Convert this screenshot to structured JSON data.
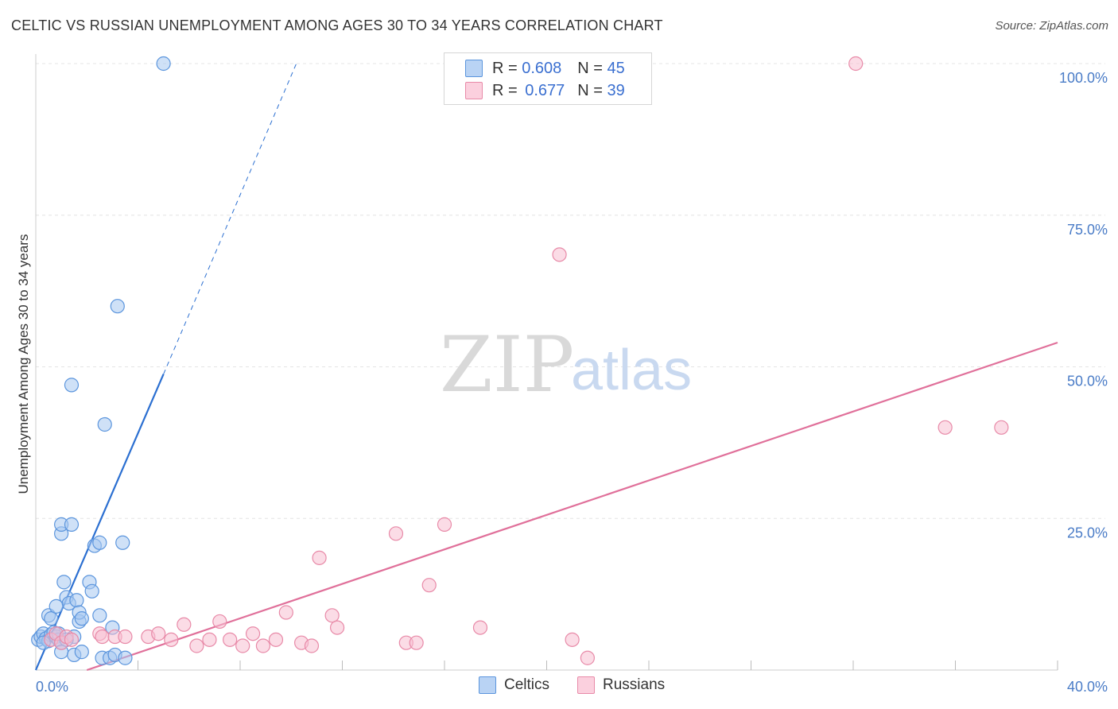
{
  "title": "CELTIC VS RUSSIAN UNEMPLOYMENT AMONG AGES 30 TO 34 YEARS CORRELATION CHART",
  "source": "Source: ZipAtlas.com",
  "watermark": {
    "zip": "ZIP",
    "atlas": "atlas"
  },
  "legend_top": [
    {
      "r_label": "R =",
      "r_value": "0.608",
      "n_label": "N =",
      "n_value": "45"
    },
    {
      "r_label": "R =",
      "r_value": "0.677",
      "n_label": "N =",
      "n_value": "39"
    }
  ],
  "legend_bottom": [
    "Celtics",
    "Russians"
  ],
  "colors": {
    "celtics_fill": "#a8c8f0",
    "celtics_stroke": "#5b95dd",
    "celtics_line": "#2b6fd1",
    "russians_fill": "#f8c0d2",
    "russians_stroke": "#e88aa8",
    "russians_line": "#e0709a",
    "tick": "#4a7cc7"
  },
  "chart_data": {
    "type": "scatter",
    "title": "CELTIC VS RUSSIAN UNEMPLOYMENT AMONG AGES 30 TO 34 YEARS CORRELATION CHART",
    "xlabel": "",
    "ylabel": "Unemployment Among Ages 30 to 34 years",
    "xlim": [
      0,
      40
    ],
    "ylim": [
      0,
      100
    ],
    "x_tick_labels": [
      {
        "v": 0,
        "label": "0.0%"
      },
      {
        "v": 40,
        "label": "40.0%"
      }
    ],
    "y_tick_labels": [
      {
        "v": 25,
        "label": "25.0%"
      },
      {
        "v": 50,
        "label": "50.0%"
      },
      {
        "v": 75,
        "label": "75.0%"
      },
      {
        "v": 100,
        "label": "100.0%"
      }
    ],
    "series": [
      {
        "name": "Celtics",
        "r": 0.608,
        "n": 45,
        "points": [
          [
            0.1,
            5.0
          ],
          [
            0.2,
            5.5
          ],
          [
            0.3,
            6.0
          ],
          [
            0.4,
            5.2
          ],
          [
            0.5,
            4.8
          ],
          [
            0.6,
            5.8
          ],
          [
            0.7,
            6.2
          ],
          [
            0.8,
            5.5
          ],
          [
            0.9,
            5.0
          ],
          [
            1.0,
            4.5
          ],
          [
            0.5,
            9.0
          ],
          [
            0.6,
            8.5
          ],
          [
            0.8,
            10.5
          ],
          [
            1.0,
            22.5
          ],
          [
            1.0,
            24.0
          ],
          [
            1.1,
            14.5
          ],
          [
            1.2,
            12.0
          ],
          [
            1.3,
            11.0
          ],
          [
            1.4,
            24.0
          ],
          [
            1.4,
            47.0
          ],
          [
            1.5,
            5.5
          ],
          [
            1.6,
            11.5
          ],
          [
            1.7,
            8.0
          ],
          [
            1.7,
            9.5
          ],
          [
            1.8,
            8.5
          ],
          [
            1.0,
            3.0
          ],
          [
            1.5,
            2.5
          ],
          [
            1.8,
            3.0
          ],
          [
            2.1,
            14.5
          ],
          [
            2.2,
            13.0
          ],
          [
            2.3,
            20.5
          ],
          [
            2.5,
            21.0
          ],
          [
            2.5,
            9.0
          ],
          [
            2.6,
            2.0
          ],
          [
            2.7,
            40.5
          ],
          [
            2.9,
            2.0
          ],
          [
            3.0,
            7.0
          ],
          [
            3.1,
            2.5
          ],
          [
            3.2,
            60.0
          ],
          [
            3.4,
            21.0
          ],
          [
            3.5,
            2.0
          ],
          [
            5.0,
            100.0
          ],
          [
            0.3,
            4.5
          ],
          [
            0.9,
            6.0
          ],
          [
            1.2,
            5.0
          ]
        ],
        "trend": {
          "x0": 0.0,
          "y0": 0.0,
          "x1": 5.0,
          "y1": 48.8,
          "dashed_to": [
            10.2,
            100.0
          ]
        }
      },
      {
        "name": "Russians",
        "r": 0.677,
        "n": 39,
        "points": [
          [
            0.6,
            5.0
          ],
          [
            0.8,
            6.0
          ],
          [
            1.0,
            4.5
          ],
          [
            1.2,
            5.5
          ],
          [
            1.4,
            5.0
          ],
          [
            2.5,
            6.0
          ],
          [
            2.6,
            5.5
          ],
          [
            3.1,
            5.5
          ],
          [
            3.5,
            5.5
          ],
          [
            4.4,
            5.5
          ],
          [
            4.8,
            6.0
          ],
          [
            5.3,
            5.0
          ],
          [
            5.8,
            7.5
          ],
          [
            6.3,
            4.0
          ],
          [
            6.8,
            5.0
          ],
          [
            7.2,
            8.0
          ],
          [
            7.6,
            5.0
          ],
          [
            8.1,
            4.0
          ],
          [
            8.5,
            6.0
          ],
          [
            8.9,
            4.0
          ],
          [
            9.4,
            5.0
          ],
          [
            9.8,
            9.5
          ],
          [
            10.4,
            4.5
          ],
          [
            10.8,
            4.0
          ],
          [
            11.1,
            18.5
          ],
          [
            11.6,
            9.0
          ],
          [
            11.8,
            7.0
          ],
          [
            14.1,
            22.5
          ],
          [
            14.5,
            4.5
          ],
          [
            14.9,
            4.5
          ],
          [
            15.4,
            14.0
          ],
          [
            16.0,
            24.0
          ],
          [
            17.4,
            7.0
          ],
          [
            20.5,
            68.5
          ],
          [
            21.0,
            5.0
          ],
          [
            21.6,
            2.0
          ],
          [
            32.1,
            100.0
          ],
          [
            35.6,
            40.0
          ],
          [
            37.8,
            40.0
          ]
        ],
        "trend": {
          "x0": 2.0,
          "y0": 0.0,
          "x1": 40.0,
          "y1": 54.0
        }
      }
    ],
    "legend": "top-center"
  }
}
